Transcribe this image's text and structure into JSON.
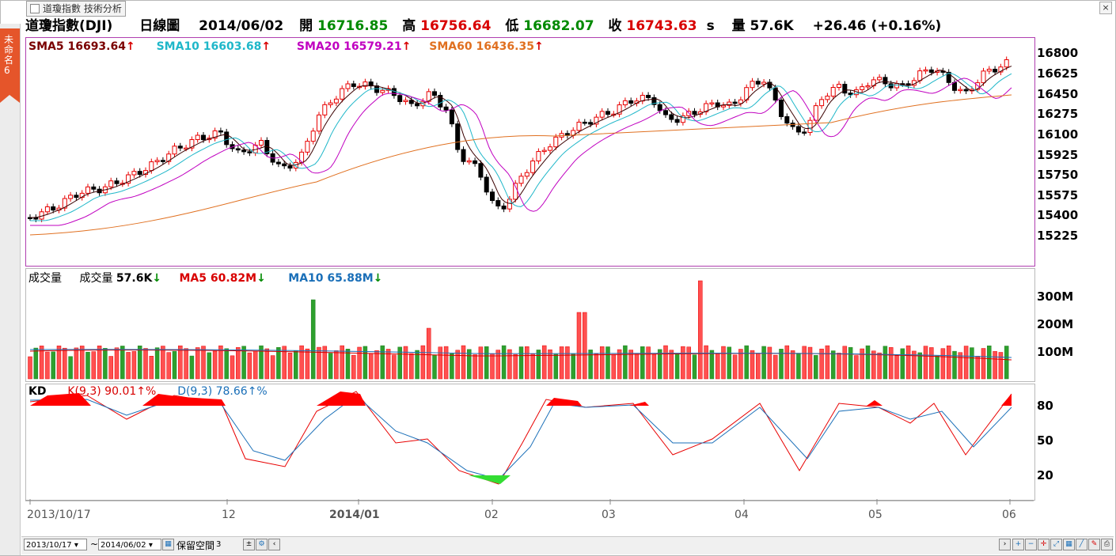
{
  "side_tab": {
    "label": "未命名6"
  },
  "tab": {
    "label": "道瓊指數 技術分析"
  },
  "quote": {
    "name": "道瓊指數(DJI)",
    "period": "日線圖",
    "date": "2014/06/02",
    "open_label": "開",
    "open": "16716.85",
    "high_label": "高",
    "high": "16756.64",
    "low_label": "低",
    "low": "16682.07",
    "close_label": "收",
    "close": "16743.63",
    "close_suffix": "s",
    "vol_label": "量",
    "vol": "57.6K",
    "change": "+26.46 (+0.16%)"
  },
  "price_panel": {
    "legend": [
      {
        "label": "SMA5 16693.64",
        "color": "#7a0000",
        "arrow": "↑"
      },
      {
        "label": "SMA10 16603.68",
        "color": "#1fb7c9",
        "arrow": "↑"
      },
      {
        "label": "SMA20 16579.21",
        "color": "#c000c0",
        "arrow": "↑"
      },
      {
        "label": "SMA60 16436.35",
        "color": "#e07020",
        "arrow": "↑"
      }
    ],
    "yticks": [
      "16800",
      "16625",
      "16450",
      "16275",
      "16100",
      "15925",
      "15750",
      "15575",
      "15400",
      "15225"
    ]
  },
  "volume_panel": {
    "title": "成交量",
    "legend": [
      {
        "label": "成交量",
        "value": "57.6K",
        "arrow": "↓",
        "color": "#000000"
      },
      {
        "label": "MA5 60.82M",
        "value": "",
        "arrow": "↓",
        "color": "#d80000"
      },
      {
        "label": "MA10 65.88M",
        "value": "",
        "arrow": "↓",
        "color": "#1a6fb8"
      }
    ],
    "yticks": [
      "300M",
      "200M",
      "100M"
    ]
  },
  "kd_panel": {
    "title": "KD",
    "k_label": "K(9,3) 90.01",
    "k_arrow": "↑%",
    "d_label": "D(9,3) 78.66",
    "d_arrow": "↑%",
    "yticks": [
      "80",
      "50",
      "20"
    ]
  },
  "x_axis": {
    "labels": [
      {
        "text": "2013/10/17",
        "bold": false
      },
      {
        "text": "12",
        "bold": false
      },
      {
        "text": "2014/01",
        "bold": true
      },
      {
        "text": "02",
        "bold": false
      },
      {
        "text": "03",
        "bold": false
      },
      {
        "text": "04",
        "bold": false
      },
      {
        "text": "05",
        "bold": false
      },
      {
        "text": "06",
        "bold": false
      }
    ]
  },
  "bottom_bar": {
    "from_date": "2013/10/17",
    "tilde": "~",
    "to_date": "2014/06/02",
    "reserve_label": "保留空間",
    "reserve_value": "3"
  },
  "colors": {
    "up": "#e80000",
    "down": "#000000",
    "vol_up": "#ff4040",
    "vol_down": "#2ea02e"
  }
}
